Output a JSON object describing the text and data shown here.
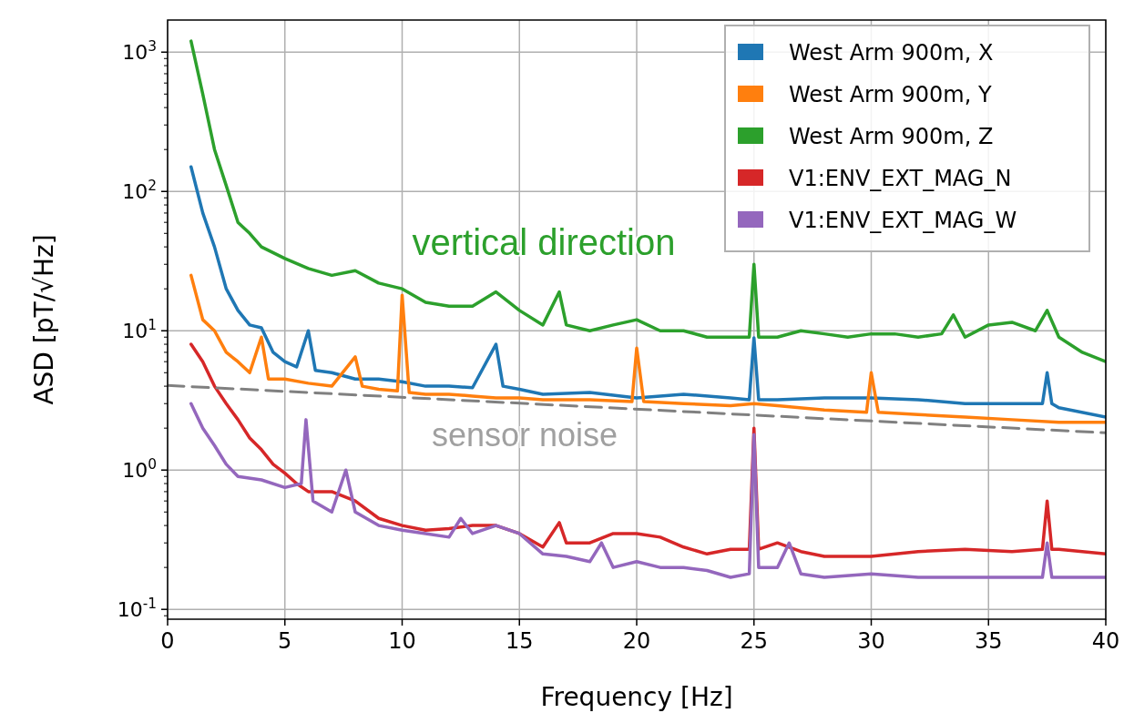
{
  "chart_data": {
    "type": "line",
    "xlabel": "Frequency [Hz]",
    "ylabel": "ASD [pT/√Hz]",
    "log": "y",
    "grid": true,
    "legend": "top right",
    "marker": "none",
    "xlim": [
      0,
      40
    ],
    "ylim": [
      0.085,
      1700
    ],
    "xticks": [
      0,
      5,
      10,
      15,
      20,
      25,
      30,
      35,
      40
    ],
    "yticks": [
      {
        "value": 0.1,
        "label": "10$^{-1}$"
      },
      {
        "value": 1,
        "label": "10$^{0}$"
      },
      {
        "value": 10,
        "label": "10$^{1}$"
      },
      {
        "value": 100,
        "label": "10$^{2}$"
      },
      {
        "value": 1000,
        "label": "10$^{3}$"
      }
    ],
    "annotations": [
      "vertical direction",
      "sensor noise"
    ],
    "series": [
      {
        "name": "West Arm 900m, X",
        "color": "#1f77b4",
        "x": [
          1,
          1.5,
          2,
          2.5,
          3,
          3.5,
          4,
          4.5,
          5,
          5.5,
          6,
          6.3,
          7,
          8,
          9,
          10,
          11,
          12,
          13,
          14,
          14.3,
          15,
          16,
          18,
          20,
          22,
          24,
          24.8,
          25,
          25.2,
          26,
          28,
          30,
          32,
          34,
          36,
          37.3,
          37.5,
          37.7,
          38,
          40
        ],
        "values": [
          150,
          70,
          40,
          20,
          14,
          11,
          10.5,
          7,
          6,
          5.5,
          10,
          5.2,
          5,
          4.5,
          4.5,
          4.3,
          4,
          4,
          3.9,
          8,
          4,
          3.8,
          3.5,
          3.6,
          3.3,
          3.5,
          3.3,
          3.2,
          8.9,
          3.2,
          3.2,
          3.3,
          3.3,
          3.2,
          3,
          3,
          3,
          5,
          3,
          2.8,
          2.4
        ]
      },
      {
        "name": "West Arm 900m, Y",
        "color": "#ff7f0e",
        "x": [
          1,
          1.5,
          2,
          2.5,
          3,
          3.5,
          4,
          4.3,
          5,
          6,
          7,
          8,
          8.3,
          9,
          9.8,
          10,
          10.3,
          11,
          12,
          13,
          14,
          15,
          16,
          18,
          19.8,
          20,
          20.3,
          22,
          24,
          25,
          26,
          28,
          29.8,
          30,
          30.3,
          32,
          34,
          36,
          38,
          40
        ],
        "values": [
          25,
          12,
          10,
          7,
          6,
          5,
          9,
          4.5,
          4.5,
          4.2,
          4,
          6.5,
          4,
          3.8,
          3.7,
          18,
          3.6,
          3.5,
          3.5,
          3.4,
          3.3,
          3.3,
          3.2,
          3.2,
          3.1,
          7.5,
          3.1,
          3,
          2.9,
          3,
          2.9,
          2.7,
          2.6,
          5,
          2.6,
          2.5,
          2.4,
          2.3,
          2.2,
          2.2
        ]
      },
      {
        "name": "West Arm 900m, Z",
        "color": "#2ca02c",
        "x": [
          1,
          1.5,
          2,
          2.5,
          3,
          3.5,
          4,
          5,
          6,
          7,
          8,
          9,
          10,
          11,
          12,
          13,
          14,
          15,
          16,
          16.7,
          17,
          18,
          19,
          20,
          21,
          22,
          23,
          24,
          24.8,
          25,
          25.2,
          26,
          27,
          28,
          29,
          30,
          31,
          32,
          33,
          33.5,
          34,
          35,
          36,
          37,
          37.5,
          38,
          39,
          40
        ],
        "values": [
          1200,
          500,
          200,
          110,
          60,
          50,
          40,
          33,
          28,
          25,
          27,
          22,
          20,
          16,
          15,
          15,
          19,
          14,
          11,
          19,
          11,
          10,
          11,
          12,
          10,
          10,
          9,
          9,
          9,
          30,
          9,
          9,
          10,
          9.5,
          9,
          9.5,
          9.5,
          9,
          9.5,
          13,
          9,
          11,
          11.5,
          10,
          14,
          9,
          7,
          6
        ]
      },
      {
        "name": "V1:ENV_EXT_MAG_N",
        "color": "#d62728",
        "x": [
          1,
          1.5,
          2,
          2.5,
          3,
          3.5,
          4,
          4.5,
          5,
          5.5,
          6,
          7,
          8,
          9,
          10,
          11,
          12,
          13,
          14,
          15,
          16,
          16.7,
          17,
          18,
          19,
          20,
          21,
          22,
          23,
          24,
          24.8,
          25,
          25.2,
          26,
          27,
          28,
          30,
          32,
          34,
          36,
          37.3,
          37.5,
          37.7,
          38,
          40
        ],
        "values": [
          8,
          6,
          4,
          3,
          2.3,
          1.7,
          1.4,
          1.1,
          0.95,
          0.8,
          0.7,
          0.7,
          0.6,
          0.45,
          0.4,
          0.37,
          0.38,
          0.4,
          0.4,
          0.35,
          0.28,
          0.42,
          0.3,
          0.3,
          0.35,
          0.35,
          0.33,
          0.28,
          0.25,
          0.27,
          0.27,
          2,
          0.27,
          0.3,
          0.26,
          0.24,
          0.24,
          0.26,
          0.27,
          0.26,
          0.27,
          0.6,
          0.27,
          0.27,
          0.25
        ]
      },
      {
        "name": "V1:ENV_EXT_MAG_W",
        "color": "#9467bd",
        "x": [
          1,
          1.5,
          2,
          2.5,
          3,
          4,
          5,
          5.7,
          5.9,
          6.2,
          7,
          7.6,
          8,
          9,
          10,
          11,
          12,
          12.5,
          13,
          14,
          15,
          16,
          17,
          18,
          18.5,
          19,
          20,
          21,
          22,
          23,
          24,
          24.8,
          25,
          25.2,
          26,
          26.5,
          27,
          28,
          30,
          32,
          34,
          36,
          37.3,
          37.5,
          37.7,
          38,
          40
        ],
        "values": [
          3,
          2,
          1.5,
          1.1,
          0.9,
          0.85,
          0.75,
          0.8,
          2.3,
          0.6,
          0.5,
          1,
          0.5,
          0.4,
          0.37,
          0.35,
          0.33,
          0.45,
          0.35,
          0.4,
          0.35,
          0.25,
          0.24,
          0.22,
          0.3,
          0.2,
          0.22,
          0.2,
          0.2,
          0.19,
          0.17,
          0.18,
          1.8,
          0.2,
          0.2,
          0.3,
          0.18,
          0.17,
          0.18,
          0.17,
          0.17,
          0.17,
          0.17,
          0.3,
          0.17,
          0.17,
          0.17
        ]
      },
      {
        "type": "line",
        "line_style": "dashed",
        "color": "#808080",
        "x": [
          0,
          40
        ],
        "values": [
          4.05,
          1.85
        ]
      }
    ]
  }
}
